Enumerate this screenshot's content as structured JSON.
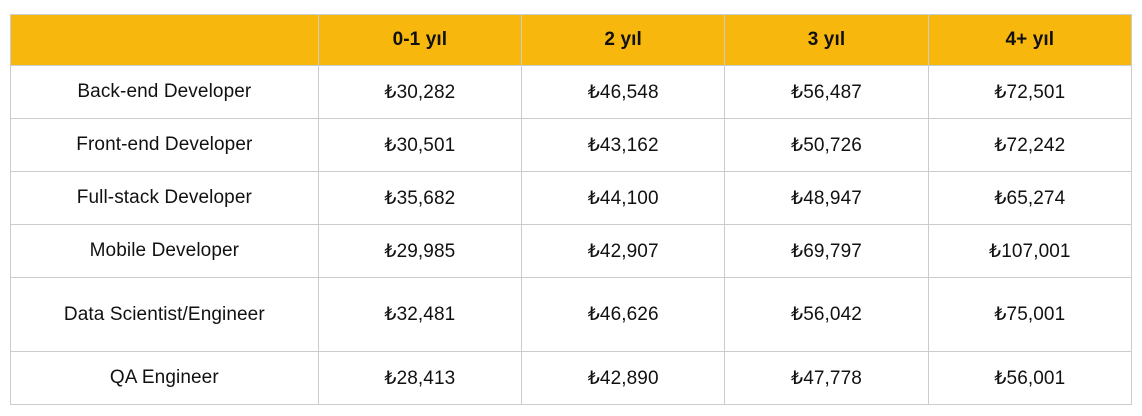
{
  "colors": {
    "header_bg": "#f7b70d",
    "border": "#cccccc",
    "text": "#111111",
    "background": "#ffffff"
  },
  "table": {
    "corner_header": "",
    "column_headers": [
      "0-1 yıl",
      "2 yıl",
      "3 yıl",
      "4+ yıl"
    ],
    "rows": [
      {
        "label": "Back-end Developer",
        "values": [
          "₺30,282",
          "₺46,548",
          "₺56,487",
          "₺72,501"
        ]
      },
      {
        "label": "Front-end Developer",
        "values": [
          "₺30,501",
          "₺43,162",
          "₺50,726",
          "₺72,242"
        ]
      },
      {
        "label": "Full-stack Developer",
        "values": [
          "₺35,682",
          "₺44,100",
          "₺48,947",
          "₺65,274"
        ]
      },
      {
        "label": "Mobile Developer",
        "values": [
          "₺29,985",
          "₺42,907",
          "₺69,797",
          "₺107,001"
        ]
      },
      {
        "label": "Data Scientist/Engineer",
        "values": [
          "₺32,481",
          "₺46,626",
          "₺56,042",
          "₺75,001"
        ]
      },
      {
        "label": "QA Engineer",
        "values": [
          "₺28,413",
          "₺42,890",
          "₺47,778",
          "₺56,001"
        ]
      }
    ]
  },
  "chart_data": {
    "type": "table",
    "title": "",
    "columns": [
      "0-1 yıl",
      "2 yıl",
      "3 yıl",
      "4+ yıl"
    ],
    "currency": "₺",
    "rows": [
      {
        "label": "Back-end Developer",
        "values": [
          30282,
          46548,
          56487,
          72501
        ]
      },
      {
        "label": "Front-end Developer",
        "values": [
          30501,
          43162,
          50726,
          72242
        ]
      },
      {
        "label": "Full-stack Developer",
        "values": [
          35682,
          44100,
          48947,
          65274
        ]
      },
      {
        "label": "Mobile Developer",
        "values": [
          29985,
          42907,
          69797,
          107001
        ]
      },
      {
        "label": "Data Scientist/Engineer",
        "values": [
          32481,
          46626,
          56042,
          75001
        ]
      },
      {
        "label": "QA Engineer",
        "values": [
          28413,
          42890,
          47778,
          56001
        ]
      }
    ]
  }
}
